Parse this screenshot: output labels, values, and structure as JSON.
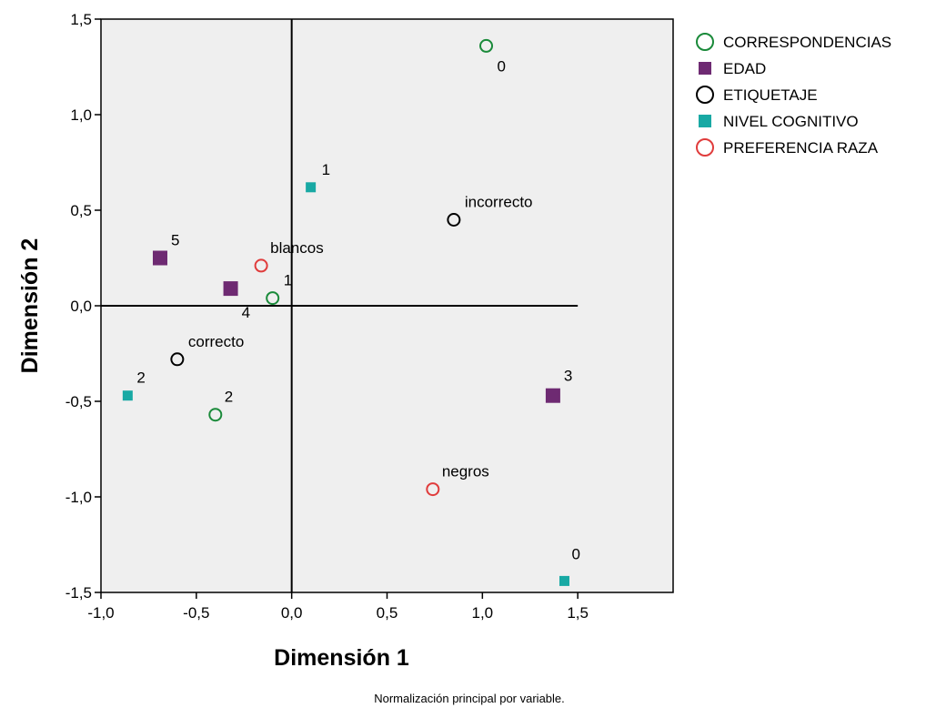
{
  "chart_data": {
    "type": "scatter",
    "title": "",
    "xlabel": "Dimensión 1",
    "ylabel": "Dimensión 2",
    "xlim": [
      -1.0,
      2.0
    ],
    "ylim": [
      -1.5,
      1.5
    ],
    "x_ticks": [
      -1.0,
      -0.5,
      0.0,
      0.5,
      1.0,
      1.5
    ],
    "x_tick_labels": [
      "-1,0",
      "-0,5",
      "0,0",
      "0,5",
      "1,0",
      "1,5"
    ],
    "y_ticks": [
      -1.5,
      -1.0,
      -0.5,
      0.0,
      0.5,
      1.0,
      1.5
    ],
    "y_tick_labels": [
      "-1,5",
      "-1,0",
      "-0,5",
      "0,0",
      "0,5",
      "1,0",
      "1,5"
    ],
    "reference_lines": {
      "x": 0.0,
      "y": 0.0
    },
    "grid": false,
    "plot_background": "#efefef",
    "legend_position": "right",
    "footnote": "Normalización principal por variable.",
    "series": [
      {
        "name": "CORRESPONDENCIAS",
        "marker": "open-circle",
        "color": "#1a8a3a",
        "points": [
          {
            "x": 1.02,
            "y": 1.36,
            "label": "0"
          },
          {
            "x": -0.1,
            "y": 0.04,
            "label": "1"
          },
          {
            "x": -0.4,
            "y": -0.57,
            "label": "2"
          }
        ]
      },
      {
        "name": "EDAD",
        "marker": "filled-square",
        "color": "#6e2a72",
        "points": [
          {
            "x": -0.69,
            "y": 0.25,
            "label": "5"
          },
          {
            "x": -0.32,
            "y": 0.09,
            "label": "4"
          },
          {
            "x": 1.37,
            "y": -0.47,
            "label": "3"
          }
        ]
      },
      {
        "name": "ETIQUETAJE",
        "marker": "open-circle",
        "color": "#000000",
        "points": [
          {
            "x": 0.85,
            "y": 0.45,
            "label": "incorrecto"
          },
          {
            "x": -0.6,
            "y": -0.28,
            "label": "correcto"
          }
        ]
      },
      {
        "name": "NIVEL COGNITIVO",
        "marker": "filled-square-small",
        "color": "#18a9a4",
        "points": [
          {
            "x": 0.1,
            "y": 0.62,
            "label": "1"
          },
          {
            "x": -0.86,
            "y": -0.47,
            "label": "2"
          },
          {
            "x": 1.43,
            "y": -1.44,
            "label": "0"
          }
        ]
      },
      {
        "name": "PREFERENCIA RAZA",
        "marker": "open-circle",
        "color": "#e03c3c",
        "points": [
          {
            "x": -0.16,
            "y": 0.21,
            "label": "blancos"
          },
          {
            "x": 0.74,
            "y": -0.96,
            "label": "negros"
          }
        ]
      }
    ]
  }
}
